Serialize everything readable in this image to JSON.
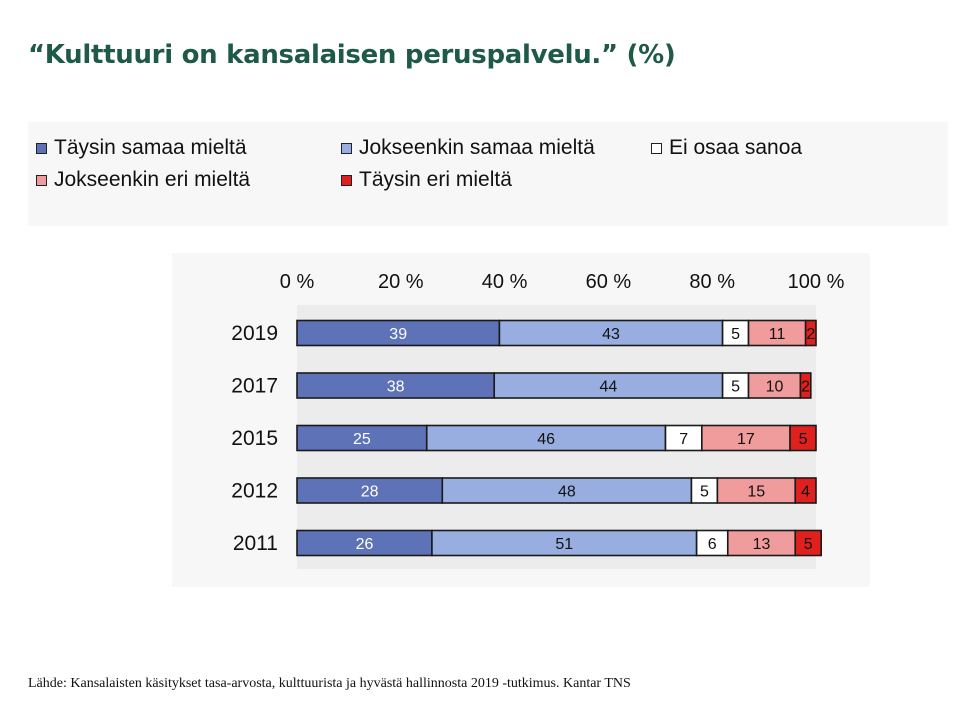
{
  "title": "“Kulttuuri on kansalaisen peruspalvelu.” (%)",
  "source": "Lähde: Kansalaisten käsitykset tasa-arvosta, kulttuurista ja hyvästä hallinnosta 2019 -tutkimus. Kantar TNS",
  "colors": {
    "taysin_samaa": "#5e72b8",
    "jokseenkin_samaa": "#98aee0",
    "ei_osaa": "#ffffff",
    "jokseenkin_eri": "#f09c9c",
    "taysin_eri": "#e0201c"
  },
  "chart_data": {
    "type": "bar",
    "orientation": "horizontal",
    "stacked": true,
    "categories": [
      "2019",
      "2017",
      "2015",
      "2012",
      "2011"
    ],
    "series": [
      {
        "name": "Täysin samaa mieltä",
        "values": [
          39,
          38,
          25,
          28,
          26
        ],
        "color": "#5e72b8"
      },
      {
        "name": "Jokseenkin samaa mieltä",
        "values": [
          43,
          44,
          46,
          48,
          51
        ],
        "color": "#98aee0"
      },
      {
        "name": "Ei osaa sanoa",
        "values": [
          5,
          5,
          7,
          5,
          6
        ],
        "color": "#ffffff"
      },
      {
        "name": "Jokseenkin eri mieltä",
        "values": [
          11,
          10,
          17,
          15,
          13
        ],
        "color": "#f09c9c"
      },
      {
        "name": "Täysin eri mieltä",
        "values": [
          2,
          2,
          5,
          4,
          5
        ],
        "color": "#e0201c"
      }
    ],
    "x_ticks": [
      "0 %",
      "20 %",
      "40 %",
      "60 %",
      "80 %",
      "100 %"
    ],
    "xlim": [
      0,
      100
    ],
    "axis_position": "top",
    "legend_placement": "top",
    "grid": false
  }
}
